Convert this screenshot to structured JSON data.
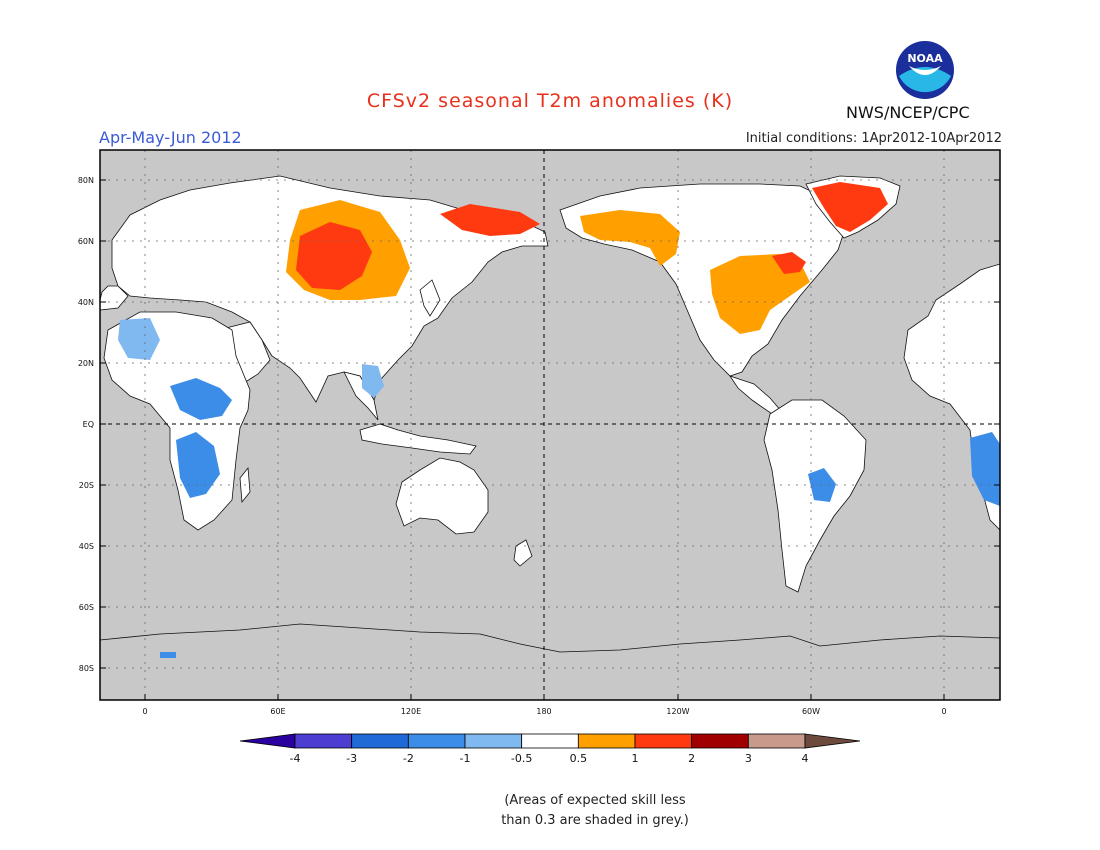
{
  "header": {
    "title": "CFSv2 seasonal T2m anomalies (K)",
    "period": "Apr-May-Jun 2012",
    "initial_conditions": "Initial conditions: 1Apr2012-10Apr2012",
    "agency": "NWS/NCEP/CPC",
    "logo_text": "NOAA"
  },
  "map": {
    "lat_labels": [
      "80N",
      "60N",
      "40N",
      "20N",
      "EQ",
      "20S",
      "40S",
      "60S",
      "80S"
    ],
    "lon_labels": [
      "0",
      "60E",
      "120E",
      "180",
      "120W",
      "60W",
      "0"
    ],
    "colors": {
      "ocean_grey": "#c8c8c8",
      "land_white": "#ffffff"
    }
  },
  "colorbar": {
    "labels": [
      "-4",
      "-3",
      "-2",
      "-1",
      "-0.5",
      "0.5",
      "1",
      "2",
      "3",
      "4"
    ],
    "colors": [
      "#2a00a0",
      "#4b3ed0",
      "#1f6ad6",
      "#3c8de8",
      "#80b8f0",
      "#ffffff",
      "#ff9f00",
      "#ff3a10",
      "#a00000",
      "#c89a8c",
      "#6e4a3c"
    ]
  },
  "footnote": {
    "line1": "(Areas of expected skill less",
    "line2": "than 0.3 are shaded in grey.)"
  }
}
